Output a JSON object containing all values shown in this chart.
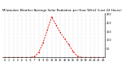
{
  "title": "Milwaukee Weather Average Solar Radiation per Hour W/m2 (Last 24 Hours)",
  "hours": [
    0,
    1,
    2,
    3,
    4,
    5,
    6,
    7,
    8,
    9,
    10,
    11,
    12,
    13,
    14,
    15,
    16,
    17,
    18,
    19,
    20,
    21,
    22,
    23
  ],
  "values": [
    0,
    0,
    0,
    0,
    0,
    0,
    0,
    5,
    30,
    85,
    160,
    235,
    190,
    145,
    110,
    75,
    35,
    8,
    0,
    0,
    0,
    0,
    0,
    0
  ],
  "line_color": "#dd0000",
  "bg_color": "#ffffff",
  "grid_color": "#bbbbbb",
  "ylim": [
    0,
    260
  ],
  "yticks": [
    50,
    100,
    150,
    200,
    250
  ],
  "ytick_labels": [
    "50",
    "100",
    "150",
    "200",
    "250"
  ],
  "title_fontsize": 2.8,
  "tick_fontsize": 2.5
}
